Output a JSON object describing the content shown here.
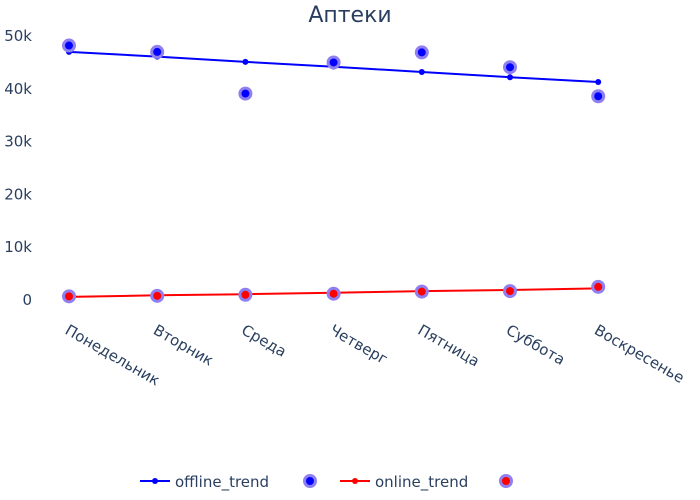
{
  "chart_data": {
    "type": "line",
    "title": "Аптеки",
    "xlabel": "",
    "ylabel": "",
    "categories": [
      "Понедельник",
      "Вторник",
      "Среда",
      "Четверг",
      "Пятница",
      "Суббота",
      "Воскресенье"
    ],
    "ylim": [
      0,
      50000
    ],
    "yticks": [
      0,
      10000,
      20000,
      30000,
      40000,
      50000
    ],
    "ytick_labels": [
      "0",
      "10k",
      "20k",
      "30k",
      "40k",
      "50k"
    ],
    "grid": false,
    "legend_position": "bottom",
    "series": [
      {
        "name": "offline_trend",
        "kind": "line+markers",
        "color": "#0000ff",
        "values": [
          46800,
          45900,
          44900,
          44000,
          43000,
          42000,
          41100
        ]
      },
      {
        "name": "",
        "kind": "markers",
        "color": "#0000ff",
        "outline": "#8f7ff0",
        "values": [
          48000,
          46800,
          38900,
          44800,
          46700,
          43900,
          38400
        ]
      },
      {
        "name": "online_trend",
        "kind": "line+markers",
        "color": "#ff0000",
        "values": [
          400,
          700,
          900,
          1200,
          1500,
          1700,
          2000
        ]
      },
      {
        "name": "",
        "kind": "markers",
        "color": "#ff0000",
        "outline": "#8f7ff0",
        "values": [
          500,
          600,
          800,
          1000,
          1400,
          1500,
          2300
        ]
      }
    ]
  }
}
